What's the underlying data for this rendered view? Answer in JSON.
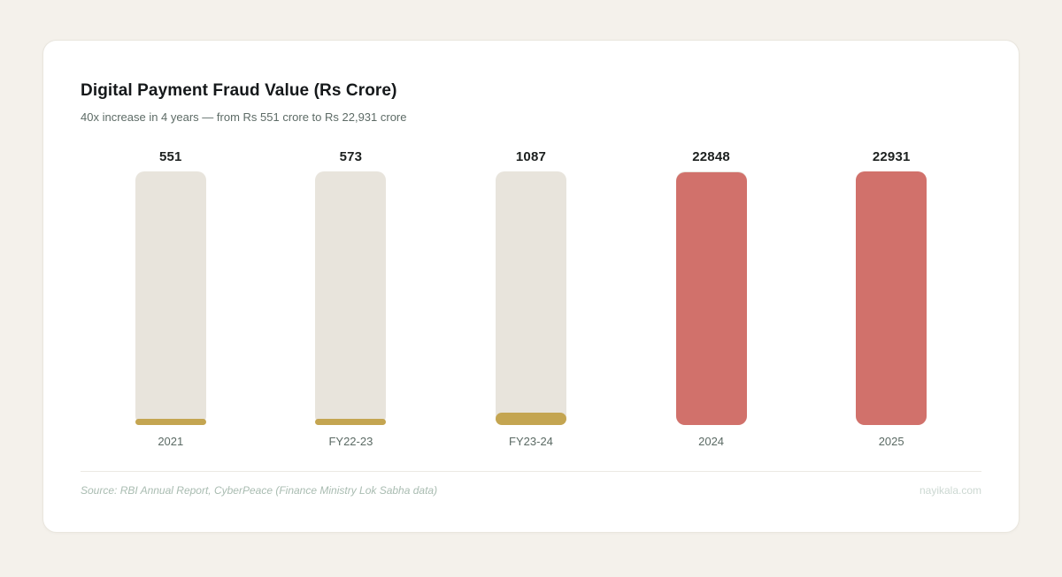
{
  "header": {
    "title": "Digital Payment Fraud Value (Rs Crore)",
    "subtitle": "40x increase in 4 years — from Rs 551 crore to Rs 22,931 crore"
  },
  "footer": {
    "source": "Source: RBI Annual Report, CyberPeace (Finance Ministry Lok Sabha data)",
    "brand": "nayikala.com"
  },
  "chart_data": {
    "type": "bar",
    "title": "Digital Payment Fraud Value (Rs Crore)",
    "subtitle": "40x increase in 4 years — from Rs 551 crore to Rs 22,931 crore",
    "categories": [
      "2021",
      "FY22-23",
      "FY23-24",
      "2024",
      "2025"
    ],
    "values": [
      551,
      573,
      1087,
      22848,
      22931
    ],
    "value_labels": [
      "551",
      "573",
      "1087",
      "22848",
      "22931"
    ],
    "ylim": [
      0,
      22931
    ],
    "grid": false,
    "legend": false,
    "data_labels_position": "above-bars",
    "orientation": "vertical",
    "bar_colors": [
      "#c4a551",
      "#c4a551",
      "#c4a551",
      "#d1716b",
      "#d1716b"
    ],
    "track_color": "#e8e4dc",
    "track_full_height": true
  }
}
